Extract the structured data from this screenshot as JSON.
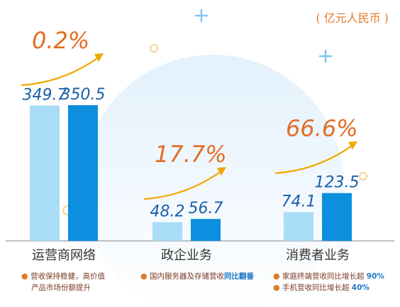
{
  "unit_label": "( 亿元人民币 )",
  "notes": {
    "carrier": {
      "line1": "营收保持稳健，高价值",
      "line2": "产品市场份额提升"
    },
    "enterprise": {
      "text": "国内服务器及存储营收",
      "highlight": "同比翻番"
    },
    "consumer": {
      "line1_text": "家庭终端营收同比增长超",
      "line1_highlight": "90%",
      "line2_text": "手机营收同比增长超",
      "line2_highlight": "40%"
    }
  },
  "colors": {
    "bar_prev": "#a9dcf7",
    "bar_curr": "#0d8fe0",
    "value_label": "#1b5faa",
    "growth": "#e56c24",
    "category": "#333333",
    "axis": "#9a9a9a",
    "bullet": "#e07a2c"
  },
  "chart_data": {
    "type": "bar",
    "categories": [
      "运营商网络",
      "政企业务",
      "消费者业务"
    ],
    "series": [
      {
        "values": [
          349.7,
          48.2,
          74.1
        ]
      },
      {
        "values": [
          350.5,
          56.7,
          123.5
        ]
      }
    ],
    "growth_labels": [
      "0.2%",
      "17.7%",
      "66.6%"
    ],
    "ylim": [
      0,
      350.5
    ]
  }
}
